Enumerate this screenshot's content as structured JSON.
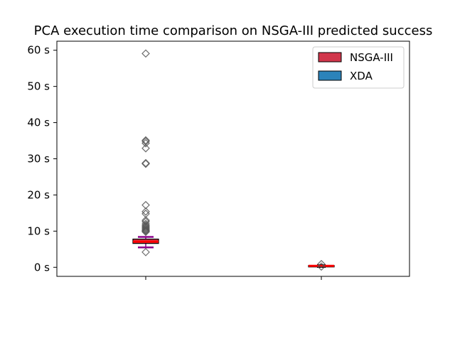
{
  "chart_data": {
    "type": "box",
    "title": "PCA execution time comparison on NSGA-III predicted success",
    "xlabel": "",
    "ylabel": "",
    "ylim": [
      -2.5,
      62.5
    ],
    "yticks": [
      0,
      10,
      20,
      30,
      40,
      50,
      60
    ],
    "ytick_labels": [
      "0 s",
      "10 s",
      "20 s",
      "30 s",
      "40 s",
      "50 s",
      "60 s"
    ],
    "grid": false,
    "legend_position": "top-right",
    "legend": [
      {
        "name": "NSGA-III",
        "color": "#d1364b"
      },
      {
        "name": "XDA",
        "color": "#2b83ba"
      }
    ],
    "series": [
      {
        "name": "NSGA-III",
        "color": "#d1364b",
        "whisker_low": 5.5,
        "q1": 6.6,
        "median": 7.1,
        "q3": 7.8,
        "whisker_high": 8.4,
        "outliers": [
          59.1,
          35.1,
          34.8,
          34.3,
          32.9,
          28.8,
          28.6,
          17.2,
          15.4,
          14.8,
          13.0,
          12.6,
          12.0,
          11.6,
          11.3,
          11.0,
          10.7,
          10.4,
          10.2,
          10.0,
          9.8,
          4.2
        ]
      },
      {
        "name": "XDA",
        "color": "#2b83ba",
        "whisker_low": 0.1,
        "q1": 0.3,
        "median": 0.4,
        "q3": 0.5,
        "whisker_high": 0.6,
        "outliers": [
          0.9,
          0.2
        ]
      }
    ],
    "colors": {
      "median": "#ff0000",
      "whisker": "#8b008b",
      "xda_whisker": "#000000",
      "outlier": "#555555"
    }
  }
}
